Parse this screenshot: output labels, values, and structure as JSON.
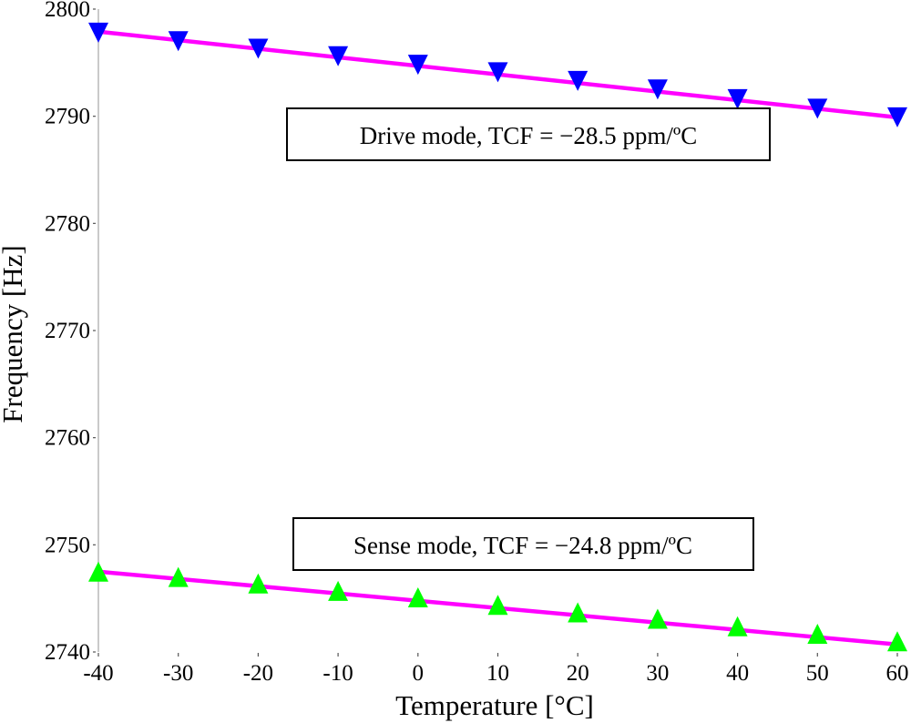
{
  "chart_data": {
    "type": "line",
    "xlabel": "Temperature [°C]",
    "ylabel": "Frequency [Hz]",
    "xlim": [
      -40,
      60
    ],
    "ylim": [
      2740,
      2800
    ],
    "xticks": [
      "-40",
      "-30",
      "-20",
      "-10",
      "0",
      "10",
      "20",
      "30",
      "40",
      "50",
      "60"
    ],
    "yticks": [
      "2740",
      "2750",
      "2760",
      "2770",
      "2780",
      "2790",
      "2800"
    ],
    "x": [
      -40,
      -30,
      -20,
      -10,
      0,
      10,
      20,
      30,
      40,
      50,
      60
    ],
    "series": [
      {
        "name": "Drive mode",
        "marker": "triangle-down",
        "marker_color": "#0000ff",
        "line_color": "#ff00ff",
        "values": [
          2797.8,
          2797.0,
          2796.3,
          2795.6,
          2794.8,
          2794.1,
          2793.3,
          2792.5,
          2791.6,
          2790.7,
          2789.9
        ],
        "fit": [
          2797.9,
          2789.9
        ]
      },
      {
        "name": "Sense mode",
        "marker": "triangle-up",
        "marker_color": "#00ff00",
        "line_color": "#ff00ff",
        "values": [
          2747.5,
          2747.0,
          2746.4,
          2745.7,
          2745.1,
          2744.4,
          2743.7,
          2743.1,
          2742.4,
          2741.7,
          2741.0
        ],
        "fit": [
          2747.5,
          2740.7
        ]
      }
    ],
    "annotations": [
      {
        "text": "Drive mode, TCF = −28.5 ppm/ºC",
        "series": "Drive mode"
      },
      {
        "text": "Sense mode, TCF = −24.8 ppm/ºC",
        "series": "Sense mode"
      }
    ]
  }
}
